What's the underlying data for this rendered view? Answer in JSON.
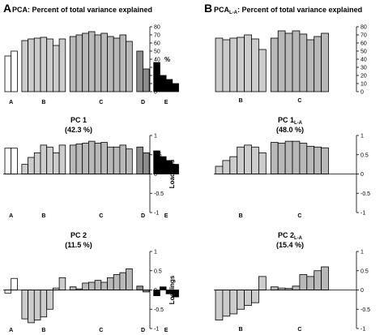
{
  "panels": {
    "A": {
      "letter": "A",
      "title": "PCA: Percent of total variance explained",
      "pc1_title": "PC 1",
      "pc1_variance": "(42.3 %)",
      "pc2_title": "PC 2",
      "pc2_variance": "(11.5 %)"
    },
    "B": {
      "letter": "B",
      "title_main": "PCA",
      "title_sub": "L-A",
      "title_rest": ": Percent of total variance explained",
      "pc1_title_main": "PC 1",
      "pc1_title_sub": "L-A",
      "pc1_variance": "(48.0 %)",
      "pc2_title_main": "PC 2",
      "pc2_title_sub": "L-A",
      "pc2_variance": "(15.4 %)"
    }
  },
  "chart_data": [
    {
      "id": "A-variance",
      "type": "bar",
      "ylabel": "%",
      "ylim": [
        0,
        80
      ],
      "yticks": [
        "0",
        "10",
        "20",
        "30",
        "40",
        "50",
        "60",
        "70",
        "80"
      ],
      "groups": [
        {
          "name": "A",
          "color": "#ffffff",
          "values": [
            44,
            50
          ]
        },
        {
          "name": "B",
          "color": "#cccccc",
          "values": [
            63,
            65,
            66,
            67,
            65,
            57,
            65
          ]
        },
        {
          "name": "C",
          "color": "#b8b8b8",
          "values": [
            68,
            70,
            72,
            74,
            70,
            72,
            68,
            66,
            70,
            62
          ]
        },
        {
          "name": "D",
          "color": "#8c8c8c",
          "values": [
            50,
            28
          ]
        },
        {
          "name": "E",
          "color": "#000000",
          "values": [
            36,
            20,
            15,
            10
          ]
        }
      ]
    },
    {
      "id": "A-pc1",
      "type": "bar",
      "ylabel": "Loadings",
      "ylim": [
        -1,
        1
      ],
      "yticks": [
        "-1",
        "-0.5",
        "0",
        "0.5",
        "1"
      ],
      "groups": [
        {
          "name": "A",
          "color": "#ffffff",
          "values": [
            0.67,
            0.67
          ]
        },
        {
          "name": "B",
          "color": "#cccccc",
          "values": [
            0.25,
            0.43,
            0.55,
            0.75,
            0.7,
            0.55,
            0.75
          ]
        },
        {
          "name": "C",
          "color": "#b8b8b8",
          "values": [
            0.75,
            0.78,
            0.8,
            0.85,
            0.8,
            0.82,
            0.7,
            0.7,
            0.75,
            0.65
          ]
        },
        {
          "name": "D",
          "color": "#8c8c8c",
          "values": [
            0.7,
            0.55
          ]
        },
        {
          "name": "E",
          "color": "#000000",
          "values": [
            0.6,
            0.45,
            0.35,
            0.25
          ]
        }
      ]
    },
    {
      "id": "A-pc2",
      "type": "bar",
      "ylabel": "Loadings",
      "ylim": [
        -1,
        1
      ],
      "yticks": [
        "-1",
        "-0.5",
        "0",
        "0.5",
        "1"
      ],
      "groups": [
        {
          "name": "A",
          "color": "#ffffff",
          "values": [
            -0.08,
            0.3
          ]
        },
        {
          "name": "B",
          "color": "#cccccc",
          "values": [
            -0.75,
            -0.85,
            -0.78,
            -0.7,
            -0.5,
            0.05,
            0.32
          ]
        },
        {
          "name": "C",
          "color": "#b8b8b8",
          "values": [
            0.08,
            0.03,
            0.18,
            0.2,
            0.25,
            0.2,
            0.32,
            0.4,
            0.45,
            0.55
          ]
        },
        {
          "name": "D",
          "color": "#8c8c8c",
          "values": [
            0.1,
            -0.05
          ]
        },
        {
          "name": "E",
          "color": "#000000",
          "values": [
            -0.15,
            0.08,
            -0.1,
            -0.18
          ]
        }
      ]
    },
    {
      "id": "B-variance",
      "type": "bar",
      "ylabel": "",
      "ylim": [
        0,
        80
      ],
      "yticks": [
        "0",
        "10",
        "20",
        "30",
        "40",
        "50",
        "60",
        "70",
        "80"
      ],
      "groups": [
        {
          "name": "B",
          "color": "#cccccc",
          "values": [
            66,
            64,
            66,
            67,
            70,
            65,
            52
          ]
        },
        {
          "name": "C",
          "color": "#b8b8b8",
          "values": [
            66,
            75,
            72,
            75,
            71,
            64,
            68,
            72
          ]
        }
      ]
    },
    {
      "id": "B-pc1",
      "type": "bar",
      "ylabel": "",
      "ylim": [
        -1,
        1
      ],
      "yticks": [
        "-1",
        "-0.5",
        "0",
        "0.5",
        "1"
      ],
      "groups": [
        {
          "name": "B",
          "color": "#cccccc",
          "values": [
            0.2,
            0.35,
            0.45,
            0.7,
            0.75,
            0.7,
            0.55
          ]
        },
        {
          "name": "C",
          "color": "#b8b8b8",
          "values": [
            0.82,
            0.8,
            0.85,
            0.85,
            0.8,
            0.72,
            0.7,
            0.68
          ]
        }
      ]
    },
    {
      "id": "B-pc2",
      "type": "bar",
      "ylabel": "",
      "ylim": [
        -1,
        1
      ],
      "yticks": [
        "-1",
        "-0.5",
        "0",
        "0.5",
        "1"
      ],
      "groups": [
        {
          "name": "B",
          "color": "#cccccc",
          "values": [
            -0.78,
            -0.68,
            -0.62,
            -0.5,
            -0.4,
            -0.33,
            0.35
          ]
        },
        {
          "name": "C",
          "color": "#b8b8b8",
          "values": [
            0.08,
            0.05,
            0.04,
            0.1,
            0.4,
            0.35,
            0.5,
            0.6
          ]
        }
      ]
    }
  ]
}
